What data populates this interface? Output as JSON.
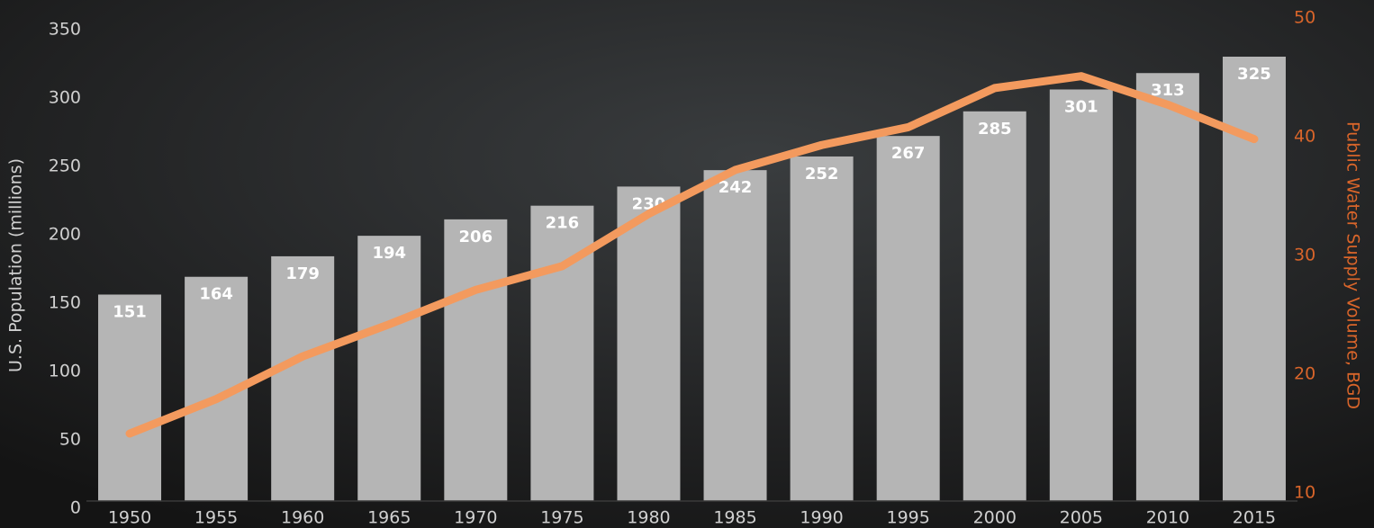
{
  "chart_data": {
    "type": "bar_line",
    "ylabel": "U.S. Population (millions)",
    "y2label": "Public Water Supply Volume, BGD",
    "categories": [
      "1950",
      "1955",
      "1960",
      "1965",
      "1970",
      "1975",
      "1980",
      "1985",
      "1990",
      "1995",
      "2000",
      "2005",
      "2010",
      "2015"
    ],
    "series": [
      {
        "name": "U.S. Population",
        "type": "bar",
        "color": "#b5b5b5",
        "values": [
          151,
          164,
          179,
          194,
          206,
          216,
          230,
          242,
          252,
          267,
          285,
          301,
          313,
          325
        ]
      },
      {
        "name": "Public Water Supply Volume",
        "type": "line",
        "axis": "y2",
        "color": "#f39a5e",
        "values": [
          15,
          17.9,
          21.5,
          24.2,
          27.1,
          29.1,
          33.5,
          37.2,
          39.3,
          40.8,
          44.1,
          45.1,
          42.7,
          39.8
        ]
      }
    ],
    "ylim": [
      0,
      350
    ],
    "yticks": [
      0,
      50,
      100,
      150,
      200,
      250,
      300,
      350
    ],
    "y2lim": [
      10,
      50
    ],
    "y2ticks": [
      10,
      20,
      30,
      40,
      50
    ]
  }
}
